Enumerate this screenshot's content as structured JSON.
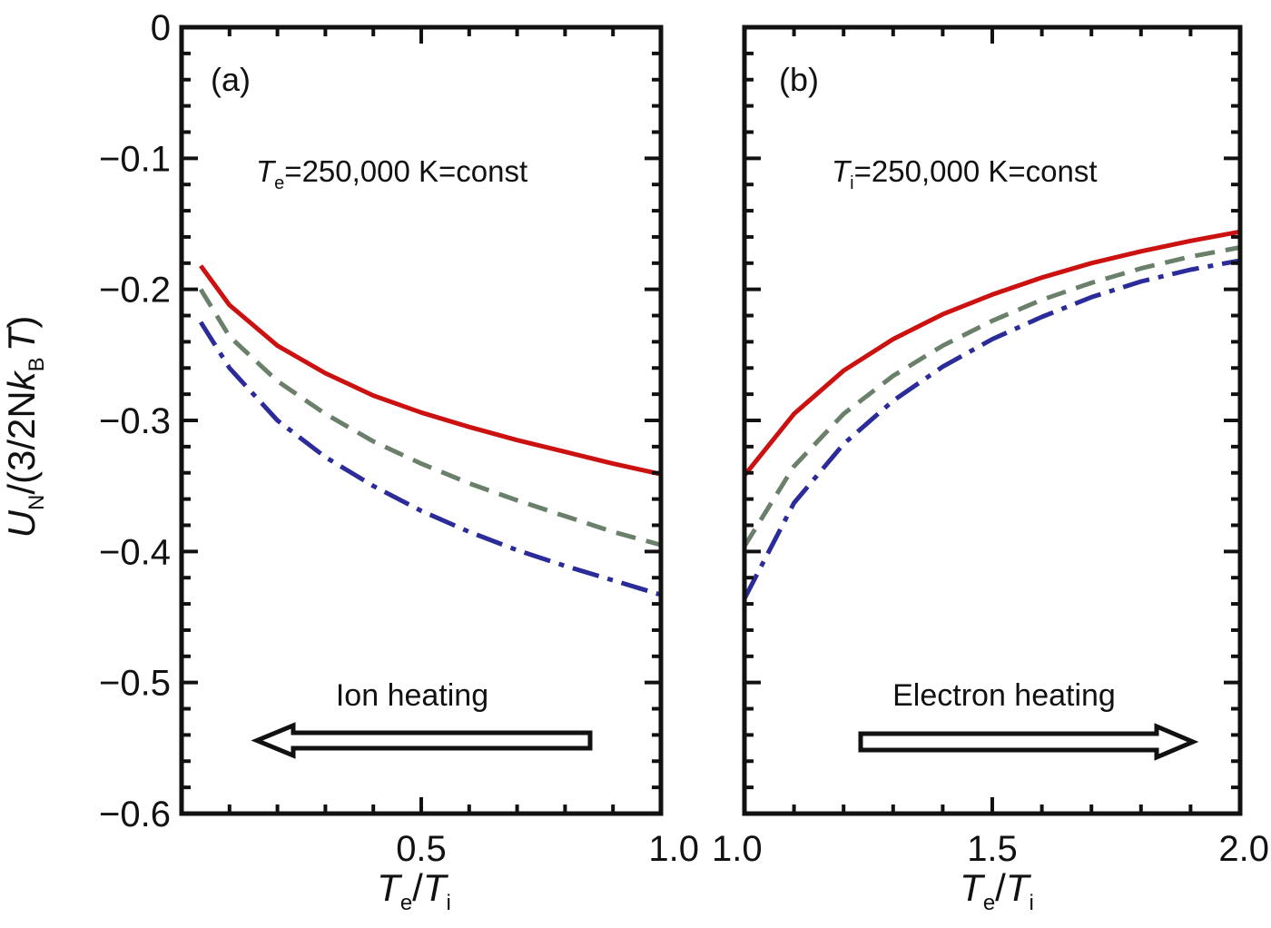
{
  "y_axis": {
    "label_main": "U",
    "label_sub": "N",
    "label_rest1": "/(3/2N",
    "label_k": "k",
    "label_ksub": "B",
    "label_T": "T",
    "label_close": ")"
  },
  "panels": [
    {
      "letter": "(a)",
      "condition_var": "T",
      "condition_sub": "e",
      "condition_rest": "=250,000 K=const",
      "arrow_label": "Ion heating",
      "arrow_direction": "left",
      "xlabel_T1": "T",
      "xlabel_sub1": "e",
      "xlabel_slash": "/",
      "xlabel_T2": "T",
      "xlabel_sub2": "i"
    },
    {
      "letter": "(b)",
      "condition_var": "T",
      "condition_sub": "i",
      "condition_rest": "=250,000 K=const",
      "arrow_label": "Electron heating",
      "arrow_direction": "right",
      "xlabel_T1": "T",
      "xlabel_sub1": "e",
      "xlabel_slash": "/",
      "xlabel_T2": "T",
      "xlabel_sub2": "i"
    }
  ],
  "colors": {
    "solid": "#cc1111",
    "dashed": "#6b806b",
    "dashdot": "#2b2b99"
  },
  "chart_data": [
    {
      "type": "line",
      "panel": "(a)",
      "xlim": [
        0.0,
        1.0
      ],
      "ylim": [
        -0.6,
        0.0
      ],
      "xticks": [
        "0.5",
        "1.0"
      ],
      "yticks": [
        "0",
        "−0.1",
        "−0.2",
        "−0.3",
        "−0.4",
        "−0.5",
        "−0.6"
      ],
      "series": [
        {
          "style": "solid",
          "x": [
            0.04,
            0.1,
            0.2,
            0.3,
            0.4,
            0.5,
            0.6,
            0.7,
            0.8,
            0.9,
            1.0
          ],
          "values": [
            -0.182,
            -0.212,
            -0.243,
            -0.264,
            -0.281,
            -0.294,
            -0.305,
            -0.315,
            -0.324,
            -0.333,
            -0.341
          ]
        },
        {
          "style": "dashed",
          "x": [
            0.04,
            0.1,
            0.2,
            0.3,
            0.4,
            0.5,
            0.6,
            0.7,
            0.8,
            0.9,
            1.0
          ],
          "values": [
            -0.2,
            -0.236,
            -0.27,
            -0.295,
            -0.316,
            -0.333,
            -0.348,
            -0.361,
            -0.373,
            -0.385,
            -0.395
          ]
        },
        {
          "style": "dashdot",
          "x": [
            0.04,
            0.1,
            0.2,
            0.3,
            0.4,
            0.5,
            0.6,
            0.7,
            0.8,
            0.9,
            1.0
          ],
          "values": [
            -0.225,
            -0.26,
            -0.3,
            -0.328,
            -0.35,
            -0.369,
            -0.385,
            -0.399,
            -0.411,
            -0.422,
            -0.433
          ]
        }
      ]
    },
    {
      "type": "line",
      "panel": "(b)",
      "xlim": [
        1.0,
        2.0
      ],
      "ylim": [
        -0.6,
        0.0
      ],
      "xticks": [
        "1.0",
        "1.5",
        "2.0"
      ],
      "yticks": [],
      "series": [
        {
          "style": "solid",
          "x": [
            1.0,
            1.1,
            1.2,
            1.3,
            1.4,
            1.5,
            1.6,
            1.7,
            1.8,
            1.9,
            2.0
          ],
          "values": [
            -0.342,
            -0.295,
            -0.262,
            -0.238,
            -0.219,
            -0.204,
            -0.191,
            -0.18,
            -0.171,
            -0.163,
            -0.156
          ]
        },
        {
          "style": "dashed",
          "x": [
            1.0,
            1.1,
            1.2,
            1.3,
            1.4,
            1.5,
            1.6,
            1.7,
            1.8,
            1.9,
            2.0
          ],
          "values": [
            -0.396,
            -0.335,
            -0.295,
            -0.266,
            -0.243,
            -0.224,
            -0.208,
            -0.195,
            -0.184,
            -0.175,
            -0.168
          ]
        },
        {
          "style": "dashdot",
          "x": [
            1.0,
            1.1,
            1.2,
            1.3,
            1.4,
            1.5,
            1.6,
            1.7,
            1.8,
            1.9,
            2.0
          ],
          "values": [
            -0.436,
            -0.363,
            -0.318,
            -0.285,
            -0.259,
            -0.238,
            -0.221,
            -0.206,
            -0.194,
            -0.185,
            -0.178
          ]
        }
      ]
    }
  ]
}
